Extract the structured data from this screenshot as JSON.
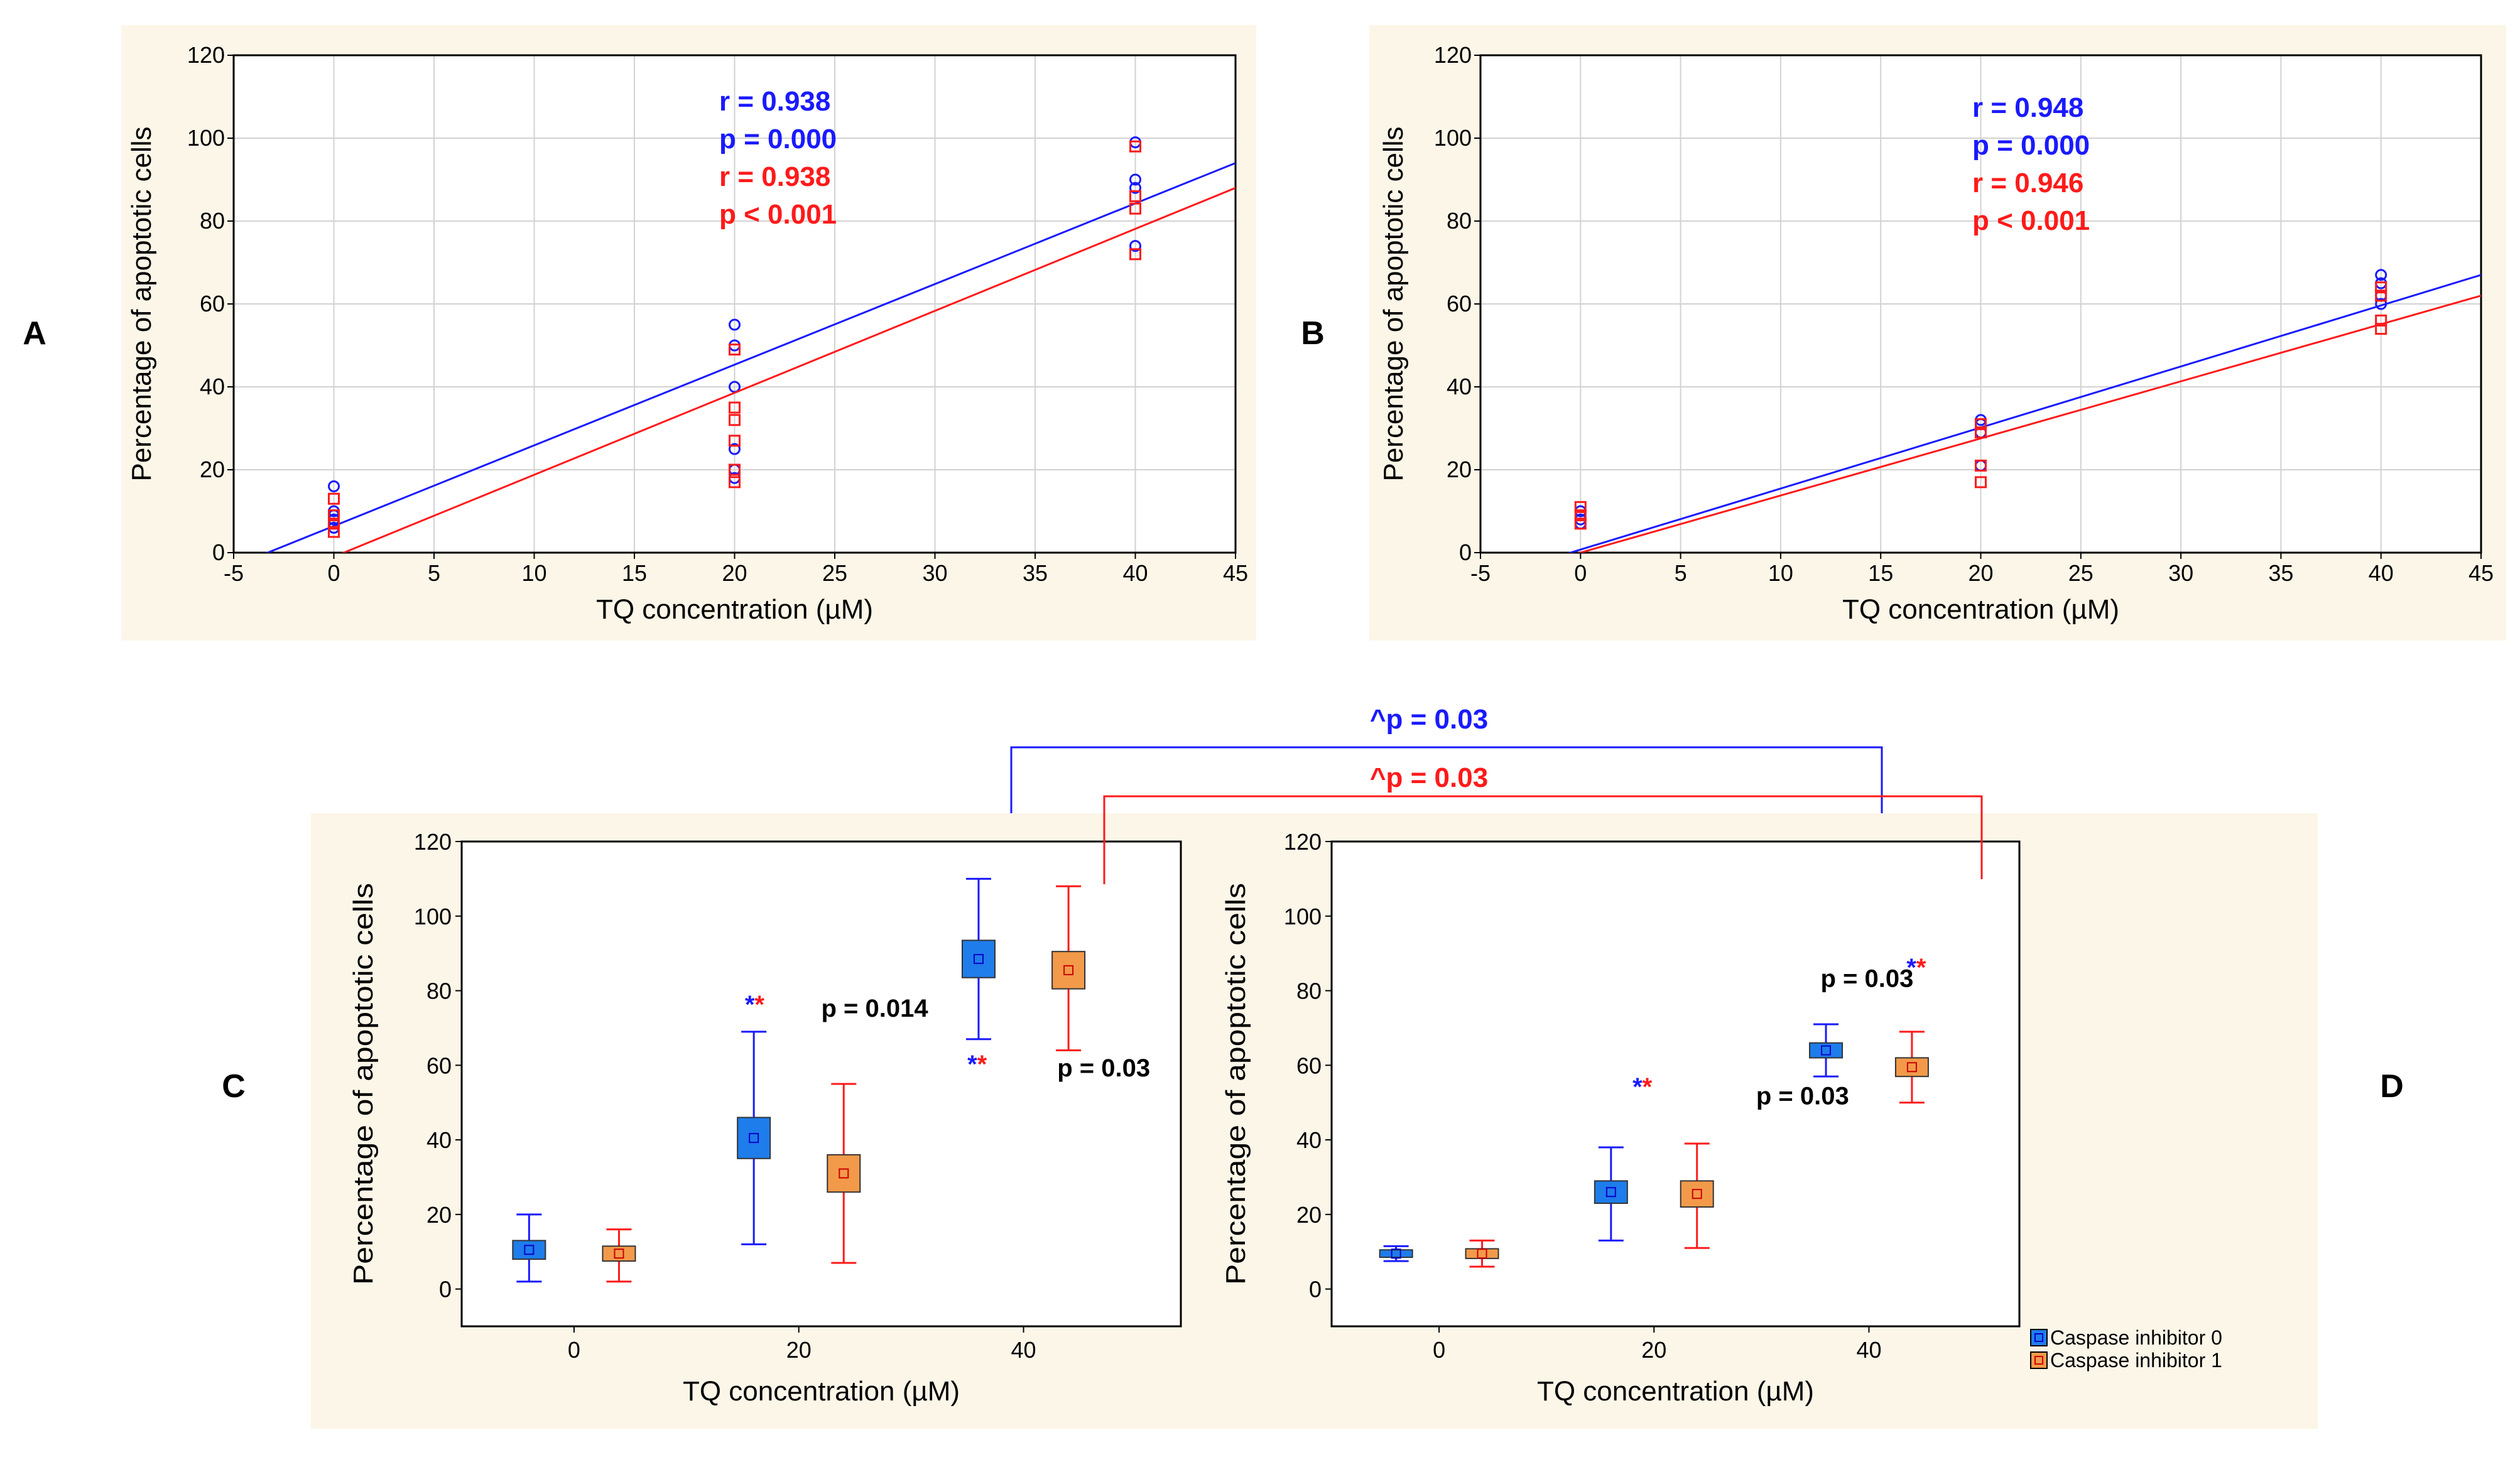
{
  "colors": {
    "blue": "#1a1aff",
    "red": "#ff1a1a",
    "box_blue": "#1e7dea",
    "box_orange": "#f29a4a",
    "panel_bg": "#fcf6e8",
    "grid": "#d2d2d2"
  },
  "labels": {
    "A": "A",
    "B": "B",
    "C": "C",
    "D": "D"
  },
  "brackets": {
    "blue_text": "^p = 0.03",
    "red_text": "^p = 0.03"
  },
  "legend": {
    "items": [
      "Caspase inhibitor 0",
      "Caspase inhibitor 1"
    ]
  },
  "chart_data": [
    {
      "id": "A",
      "type": "scatter",
      "xlabel": "TQ concentration (µM)",
      "ylabel": "Percentage of apoptotic cells",
      "xlim": [
        -5,
        45
      ],
      "ylim": [
        0,
        120
      ],
      "xticks": [
        "-5",
        "0",
        "5",
        "10",
        "15",
        "20",
        "25",
        "30",
        "35",
        "40",
        "45"
      ],
      "yticks": [
        "0",
        "20",
        "40",
        "60",
        "80",
        "100",
        "120"
      ],
      "stats": [
        "r = 0.938",
        "p = 0.000",
        "r = 0.938",
        "p < 0.001"
      ],
      "series": [
        {
          "name": "Caspase inhibitor 0",
          "marker": "circle",
          "x": [
            0,
            0,
            0,
            0,
            0,
            20,
            20,
            20,
            20,
            20,
            20,
            40,
            40,
            40,
            40
          ],
          "y": [
            16,
            10,
            9,
            8,
            6,
            55,
            50,
            40,
            25,
            20,
            18,
            99,
            90,
            88,
            74
          ],
          "fit": [
            -3.3,
            94
          ]
        },
        {
          "name": "Caspase inhibitor 1",
          "marker": "square",
          "x": [
            0,
            0,
            0,
            0,
            20,
            20,
            20,
            20,
            20,
            20,
            40,
            40,
            40,
            40
          ],
          "y": [
            13,
            9,
            7,
            5,
            49,
            35,
            32,
            27,
            20,
            17,
            98,
            86,
            83,
            72
          ],
          "fit": [
            0.5,
            88
          ]
        }
      ]
    },
    {
      "id": "B",
      "type": "scatter",
      "xlabel": "TQ concentration (µM)",
      "ylabel": "Percentage of apoptotic cells",
      "xlim": [
        -5,
        45
      ],
      "ylim": [
        0,
        120
      ],
      "xticks": [
        "-5",
        "0",
        "5",
        "10",
        "15",
        "20",
        "25",
        "30",
        "35",
        "40",
        "45"
      ],
      "yticks": [
        "0",
        "20",
        "40",
        "60",
        "80",
        "100",
        "120"
      ],
      "stats": [
        "r = 0.948",
        "p = 0.000",
        "r = 0.946",
        "p < 0.001"
      ],
      "series": [
        {
          "name": "Caspase inhibitor 0",
          "marker": "circle",
          "x": [
            0,
            0,
            0,
            20,
            20,
            20,
            20,
            40,
            40,
            40,
            40
          ],
          "y": [
            10,
            8,
            7,
            32,
            31,
            29,
            21,
            67,
            65,
            62,
            60
          ],
          "fit": [
            -0.5,
            67
          ]
        },
        {
          "name": "Caspase inhibitor 1",
          "marker": "square",
          "x": [
            0,
            0,
            0,
            20,
            20,
            20,
            20,
            40,
            40,
            40,
            40
          ],
          "y": [
            11,
            9,
            7,
            31,
            29,
            21,
            17,
            64,
            62,
            56,
            54
          ],
          "fit": [
            0,
            62
          ]
        }
      ]
    },
    {
      "id": "C",
      "type": "box",
      "xlabel": "TQ concentration (µM)",
      "ylabel": "Percentage of apoptotic cells",
      "categories": [
        "0",
        "20",
        "40"
      ],
      "ylim": [
        -10,
        120
      ],
      "yticks": [
        "0",
        "20",
        "40",
        "60",
        "80",
        "100",
        "120"
      ],
      "series": [
        {
          "name": "Caspase inhibitor 0",
          "boxes": [
            {
              "mean": 10.5,
              "q1": 8,
              "q3": 13,
              "min": 2,
              "max": 20
            },
            {
              "mean": 40.5,
              "q1": 35,
              "q3": 46,
              "min": 12,
              "max": 69
            },
            {
              "mean": 88.5,
              "q1": 83.5,
              "q3": 93.5,
              "min": 67,
              "max": 110
            }
          ]
        },
        {
          "name": "Caspase inhibitor 1",
          "boxes": [
            {
              "mean": 9.5,
              "q1": 7.5,
              "q3": 11.5,
              "min": 2,
              "max": 16
            },
            {
              "mean": 31,
              "q1": 26,
              "q3": 36,
              "min": 7,
              "max": 55
            },
            {
              "mean": 85.5,
              "q1": 80.5,
              "q3": 90.5,
              "min": 64,
              "max": 108
            }
          ]
        }
      ],
      "annotations": [
        {
          "text": "p = 0.014",
          "x": 22,
          "y": 73
        },
        {
          "text": "p = 0.03",
          "x": 43,
          "y": 57
        }
      ],
      "stars": [
        {
          "x": 15.2,
          "y": 74
        },
        {
          "x": 35,
          "y": 58
        }
      ]
    },
    {
      "id": "D",
      "type": "box",
      "xlabel": "TQ concentration (µM)",
      "ylabel": "Percentage of apoptotic cells",
      "categories": [
        "0",
        "20",
        "40"
      ],
      "ylim": [
        -10,
        120
      ],
      "yticks": [
        "0",
        "20",
        "40",
        "60",
        "80",
        "100",
        "120"
      ],
      "series": [
        {
          "name": "Caspase inhibitor 0",
          "boxes": [
            {
              "mean": 9.5,
              "q1": 8.5,
              "q3": 10.5,
              "min": 7.5,
              "max": 11.5
            },
            {
              "mean": 26,
              "q1": 23,
              "q3": 29,
              "min": 13,
              "max": 38
            },
            {
              "mean": 64,
              "q1": 62,
              "q3": 66,
              "min": 57,
              "max": 71
            }
          ]
        },
        {
          "name": "Caspase inhibitor 1",
          "boxes": [
            {
              "mean": 9.5,
              "q1": 8.2,
              "q3": 10.8,
              "min": 6,
              "max": 13
            },
            {
              "mean": 25.5,
              "q1": 22,
              "q3": 29,
              "min": 11,
              "max": 39
            },
            {
              "mean": 59.5,
              "q1": 57,
              "q3": 62,
              "min": 50,
              "max": 69
            }
          ]
        }
      ],
      "annotations": [
        {
          "text": "p = 0.03",
          "x": 29.5,
          "y": 49.5
        },
        {
          "text": "p = 0.03",
          "x": 35.5,
          "y": 81
        }
      ],
      "stars": [
        {
          "x": 18,
          "y": 52
        },
        {
          "x": 43.5,
          "y": 84
        }
      ]
    }
  ]
}
